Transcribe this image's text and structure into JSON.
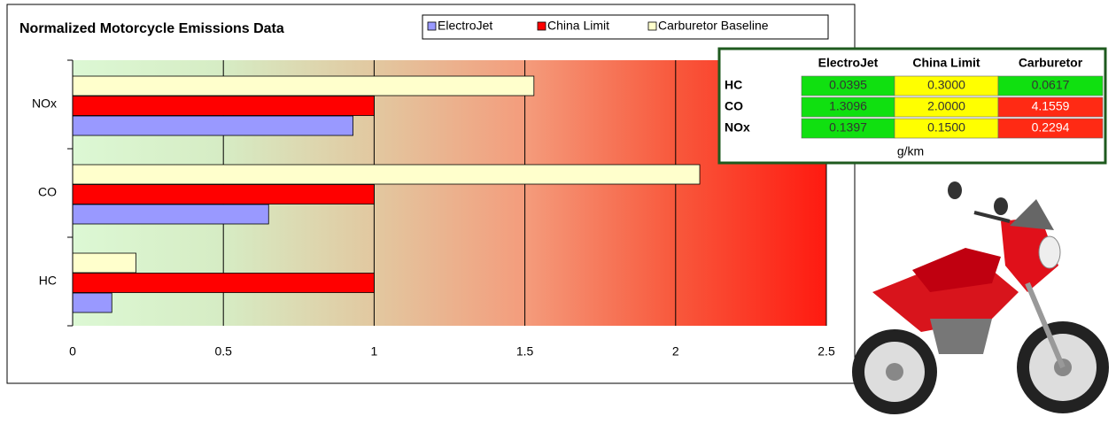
{
  "chart_data": {
    "type": "bar",
    "orientation": "horizontal",
    "title": "Normalized Motorcycle Emissions Data",
    "categories": [
      "HC",
      "CO",
      "NOx"
    ],
    "series": [
      {
        "name": "ElectroJet",
        "color": "#9999ff",
        "values": [
          0.13,
          0.65,
          0.93
        ]
      },
      {
        "name": "China Limit",
        "color": "#ff0000",
        "values": [
          1,
          1,
          1
        ]
      },
      {
        "name": "Carburetor Baseline",
        "color": "#ffffcc",
        "values": [
          0.21,
          2.08,
          1.53
        ]
      }
    ],
    "xlim": [
      0,
      2.5
    ],
    "xticks": [
      0,
      0.5,
      1,
      1.5,
      2,
      2.5
    ],
    "grid": true,
    "legend": "top"
  },
  "table": {
    "header": [
      "ElectroJet",
      "China Limit",
      "Carburetor"
    ],
    "rows": [
      [
        "HC",
        "0.0395",
        "0.3000",
        "0.0617"
      ],
      [
        "CO",
        "1.3096",
        "2.0000",
        "4.1559"
      ],
      [
        "NOx",
        "0.1397",
        "0.1500",
        "0.2294"
      ]
    ],
    "unit": "g/km"
  }
}
